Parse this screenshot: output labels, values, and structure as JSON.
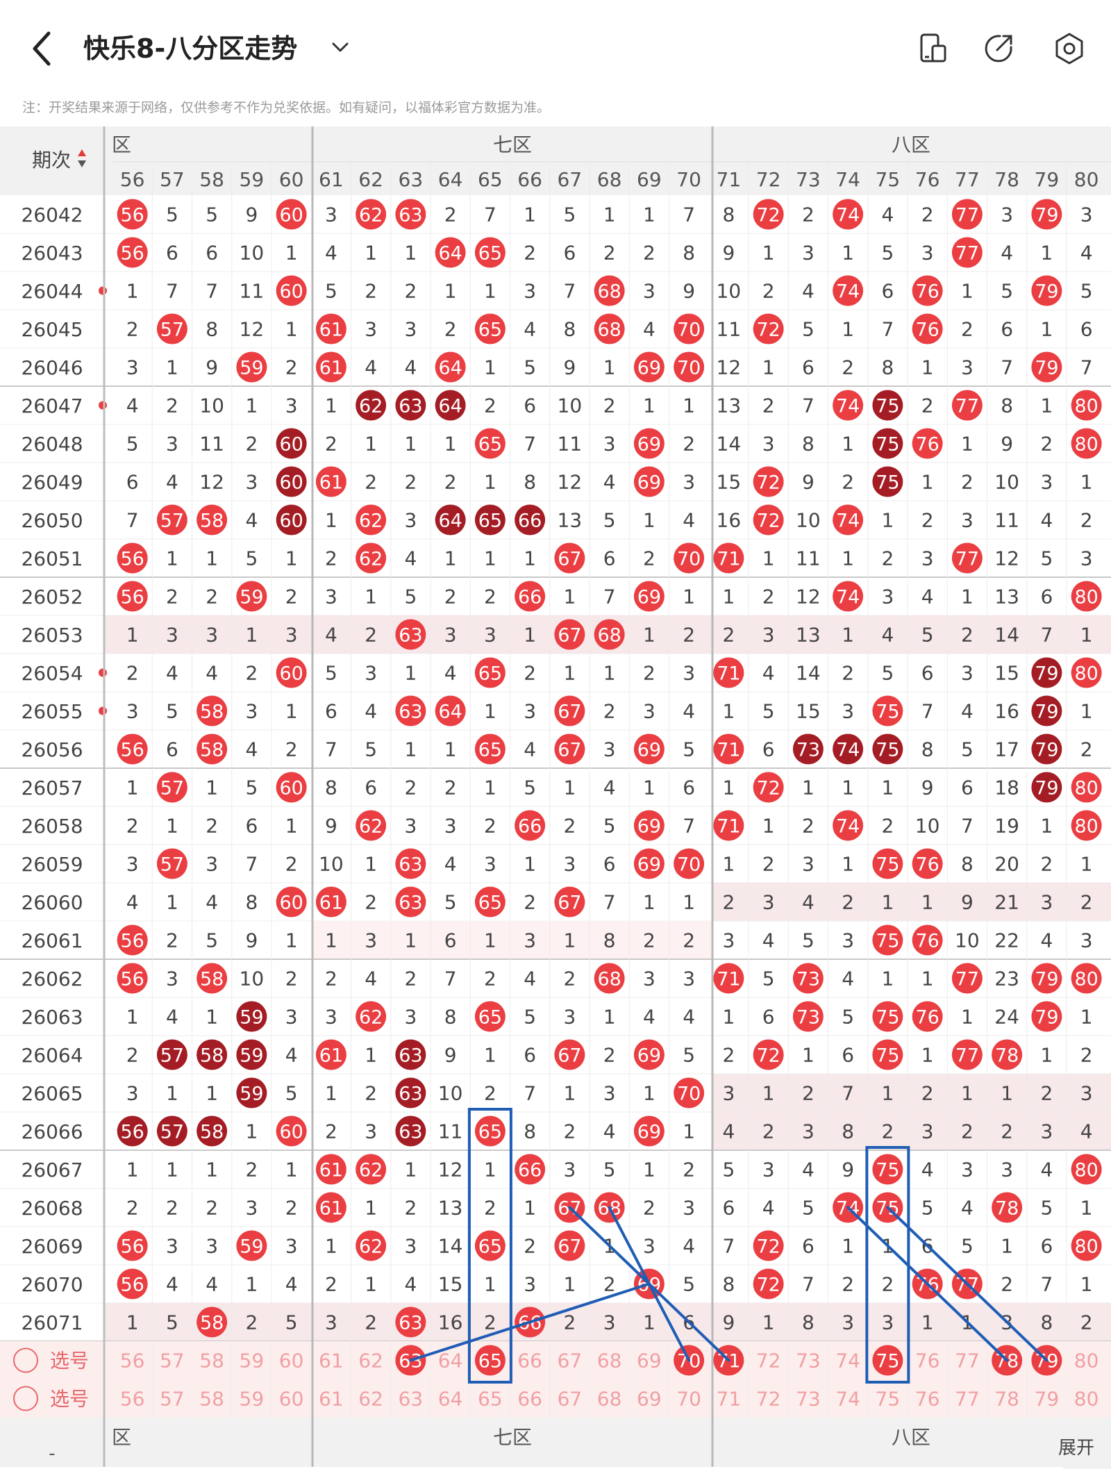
{
  "header": {
    "title": "快乐8-八分区走势",
    "icons": [
      "back-icon",
      "chevron-down-icon",
      "phone-layout-icon",
      "share-icon",
      "settings-icon"
    ]
  },
  "notice": "注：开奖结果来源于网络，仅供参考不作为兑奖依据。如有疑问，以福体彩官方数据为准。",
  "table": {
    "period_label": "期次",
    "zones": [
      {
        "label": "六区",
        "shown": "区"
      },
      {
        "label": "七区",
        "shown": "七区"
      },
      {
        "label": "八区",
        "shown": "八区"
      }
    ],
    "columns": [
      56,
      57,
      58,
      59,
      60,
      61,
      62,
      63,
      64,
      65,
      66,
      67,
      68,
      69,
      70,
      71,
      72,
      73,
      74,
      75,
      76,
      77,
      78,
      79,
      80
    ],
    "rows": [
      {
        "p": "26042",
        "v": [
          "56",
          5,
          5,
          9,
          "60",
          3,
          "62",
          "63",
          2,
          7,
          1,
          5,
          1,
          1,
          7,
          8,
          "72",
          2,
          "74",
          4,
          2,
          "77",
          3,
          "79",
          3
        ],
        "hl": [],
        "ld": false
      },
      {
        "p": "26043",
        "v": [
          "56",
          6,
          6,
          10,
          1,
          4,
          1,
          1,
          "64",
          "65",
          2,
          6,
          2,
          2,
          8,
          9,
          1,
          3,
          1,
          5,
          3,
          "77",
          4,
          1,
          4
        ],
        "hl": [],
        "ld": false
      },
      {
        "p": "26044",
        "v": [
          1,
          7,
          7,
          11,
          "60",
          5,
          2,
          2,
          1,
          1,
          3,
          7,
          "68",
          3,
          9,
          10,
          2,
          4,
          "74",
          6,
          "76",
          1,
          5,
          "79",
          5
        ],
        "hl": [],
        "ld": true
      },
      {
        "p": "26045",
        "v": [
          2,
          "57",
          8,
          12,
          1,
          "61",
          3,
          3,
          2,
          "65",
          4,
          8,
          "68",
          4,
          "70",
          11,
          "72",
          5,
          1,
          7,
          "76",
          2,
          6,
          1,
          6
        ],
        "hl": [],
        "ld": false
      },
      {
        "p": "26046",
        "v": [
          3,
          1,
          9,
          "59",
          2,
          "61",
          4,
          4,
          "64",
          1,
          5,
          9,
          1,
          "69",
          "70",
          12,
          1,
          6,
          2,
          8,
          1,
          3,
          7,
          "79",
          7
        ],
        "hl": [],
        "ld": false
      },
      {
        "p": "26047",
        "v": [
          4,
          2,
          10,
          1,
          3,
          1,
          "62",
          "63",
          "64",
          2,
          6,
          10,
          2,
          1,
          1,
          13,
          2,
          7,
          "74",
          "75",
          2,
          "77",
          8,
          1,
          "80"
        ],
        "hl": [
          "62",
          "63",
          "64",
          "75"
        ],
        "ld": true
      },
      {
        "p": "26048",
        "v": [
          5,
          3,
          11,
          2,
          "60",
          2,
          1,
          1,
          1,
          "65",
          7,
          11,
          3,
          "69",
          2,
          14,
          3,
          8,
          1,
          "75",
          "76",
          1,
          9,
          2,
          "80"
        ],
        "hl": [
          "60",
          "75"
        ],
        "ld": false
      },
      {
        "p": "26049",
        "v": [
          6,
          4,
          12,
          3,
          "60",
          "61",
          2,
          2,
          2,
          1,
          8,
          12,
          4,
          "69",
          3,
          15,
          "72",
          9,
          2,
          "75",
          1,
          2,
          10,
          3,
          1
        ],
        "hl": [
          "60",
          "75"
        ],
        "ld": false
      },
      {
        "p": "26050",
        "v": [
          7,
          "57",
          "58",
          4,
          "60",
          1,
          "62",
          3,
          "64",
          "65",
          "66",
          13,
          5,
          1,
          4,
          16,
          "72",
          10,
          "74",
          1,
          2,
          3,
          11,
          4,
          2
        ],
        "hl": [
          "60",
          "64",
          "65",
          "66"
        ],
        "ld": false
      },
      {
        "p": "26051",
        "v": [
          "56",
          1,
          1,
          5,
          1,
          2,
          "62",
          4,
          1,
          1,
          1,
          "67",
          6,
          2,
          "70",
          "71",
          1,
          11,
          1,
          2,
          3,
          "77",
          12,
          5,
          3
        ],
        "hl": [],
        "ld": false
      },
      {
        "p": "26052",
        "v": [
          "56",
          2,
          2,
          "59",
          2,
          3,
          1,
          5,
          2,
          2,
          "66",
          1,
          7,
          "69",
          1,
          1,
          2,
          12,
          "74",
          3,
          4,
          1,
          13,
          6,
          "80"
        ],
        "hl": [],
        "ld": false
      },
      {
        "p": "26053",
        "v": [
          1,
          3,
          3,
          1,
          3,
          4,
          2,
          "63",
          3,
          3,
          1,
          "67",
          "68",
          1,
          2,
          2,
          3,
          13,
          1,
          4,
          5,
          2,
          14,
          7,
          1
        ],
        "hl": [],
        "ld": false
      },
      {
        "p": "26054",
        "v": [
          2,
          4,
          4,
          2,
          "60",
          5,
          3,
          1,
          4,
          "65",
          2,
          1,
          1,
          2,
          3,
          "71",
          4,
          14,
          2,
          5,
          6,
          3,
          15,
          "79",
          "80"
        ],
        "hl": [
          "79"
        ],
        "ld": true
      },
      {
        "p": "26055",
        "v": [
          3,
          5,
          "58",
          3,
          1,
          6,
          4,
          "63",
          "64",
          1,
          3,
          "67",
          2,
          3,
          4,
          1,
          5,
          15,
          3,
          "75",
          7,
          4,
          16,
          "79",
          1
        ],
        "hl": [
          "79"
        ],
        "ld": true
      },
      {
        "p": "26056",
        "v": [
          "56",
          6,
          "58",
          4,
          2,
          7,
          5,
          1,
          1,
          "65",
          4,
          "67",
          3,
          "69",
          5,
          "71",
          6,
          "73",
          "74",
          "75",
          8,
          5,
          17,
          "79",
          2
        ],
        "hl": [
          "73",
          "74",
          "75",
          "79"
        ],
        "ld": false
      },
      {
        "p": "26057",
        "v": [
          1,
          "57",
          1,
          5,
          "60",
          8,
          6,
          2,
          2,
          1,
          5,
          1,
          4,
          1,
          6,
          1,
          "72",
          1,
          1,
          1,
          9,
          6,
          18,
          "79",
          "80"
        ],
        "hl": [
          "79"
        ],
        "ld": false
      },
      {
        "p": "26058",
        "v": [
          2,
          1,
          2,
          6,
          1,
          9,
          "62",
          3,
          3,
          2,
          "66",
          2,
          5,
          "69",
          7,
          "71",
          1,
          2,
          "74",
          2,
          10,
          7,
          19,
          1,
          "80"
        ],
        "hl": [],
        "ld": false
      },
      {
        "p": "26059",
        "v": [
          3,
          "57",
          3,
          7,
          2,
          10,
          1,
          "63",
          4,
          3,
          1,
          3,
          6,
          "69",
          "70",
          1,
          2,
          3,
          1,
          "75",
          "76",
          8,
          20,
          2,
          1
        ],
        "hl": [],
        "ld": false
      },
      {
        "p": "26060",
        "v": [
          4,
          1,
          4,
          8,
          "60",
          "61",
          2,
          "63",
          5,
          "65",
          2,
          "67",
          7,
          1,
          1,
          2,
          3,
          4,
          2,
          1,
          1,
          9,
          21,
          3,
          2
        ],
        "hl": [],
        "ld": false
      },
      {
        "p": "26061",
        "v": [
          "56",
          2,
          5,
          9,
          1,
          1,
          3,
          1,
          6,
          1,
          3,
          1,
          8,
          2,
          2,
          3,
          4,
          5,
          3,
          "75",
          "76",
          10,
          22,
          4,
          3
        ],
        "hl": [],
        "ld": false
      },
      {
        "p": "26062",
        "v": [
          "56",
          3,
          "58",
          10,
          2,
          2,
          4,
          2,
          7,
          2,
          4,
          2,
          "68",
          3,
          3,
          "71",
          5,
          "73",
          4,
          1,
          1,
          "77",
          23,
          "79",
          "80"
        ],
        "hl": [],
        "ld": false
      },
      {
        "p": "26063",
        "v": [
          1,
          4,
          1,
          "59",
          3,
          3,
          "62",
          3,
          8,
          "65",
          5,
          3,
          1,
          4,
          4,
          1,
          6,
          "73",
          5,
          "75",
          "76",
          1,
          24,
          "79",
          1
        ],
        "hl": [
          "59"
        ],
        "ld": false
      },
      {
        "p": "26064",
        "v": [
          2,
          "57",
          "58",
          "59",
          4,
          "61",
          1,
          "63",
          9,
          1,
          6,
          "67",
          2,
          "69",
          5,
          2,
          "72",
          1,
          6,
          "75",
          1,
          "77",
          "78",
          1,
          2
        ],
        "hl": [
          "57",
          "58",
          "59",
          "63"
        ],
        "ld": false
      },
      {
        "p": "26065",
        "v": [
          3,
          1,
          1,
          "59",
          5,
          1,
          2,
          "63",
          10,
          2,
          7,
          1,
          3,
          1,
          "70",
          3,
          1,
          2,
          7,
          1,
          2,
          1,
          1,
          2,
          3
        ],
        "hl": [
          "59",
          "63"
        ],
        "ld": false
      },
      {
        "p": "26066",
        "v": [
          "56",
          "57",
          "58",
          1,
          "60",
          2,
          3,
          "63",
          11,
          "65",
          8,
          2,
          4,
          "69",
          1,
          4,
          2,
          3,
          8,
          2,
          3,
          2,
          2,
          3,
          4
        ],
        "hl": [
          "56",
          "57",
          "58",
          "63"
        ],
        "ld": false
      },
      {
        "p": "26067",
        "v": [
          1,
          1,
          1,
          2,
          1,
          "61",
          "62",
          1,
          12,
          1,
          "66",
          3,
          5,
          1,
          2,
          5,
          3,
          4,
          9,
          "75",
          4,
          3,
          3,
          4,
          "80"
        ],
        "hl": [],
        "ld": false
      },
      {
        "p": "26068",
        "v": [
          2,
          2,
          2,
          3,
          2,
          "61",
          1,
          2,
          13,
          2,
          1,
          "67",
          "68",
          2,
          3,
          6,
          4,
          5,
          "74",
          "75",
          5,
          4,
          "78",
          5,
          1
        ],
        "hl": [],
        "ld": false
      },
      {
        "p": "26069",
        "v": [
          "56",
          3,
          3,
          "59",
          3,
          1,
          "62",
          3,
          14,
          "65",
          2,
          "67",
          1,
          3,
          4,
          7,
          "72",
          6,
          1,
          1,
          6,
          5,
          1,
          6,
          "80"
        ],
        "hl": [],
        "ld": false
      },
      {
        "p": "26070",
        "v": [
          "56",
          4,
          4,
          1,
          4,
          2,
          1,
          4,
          15,
          1,
          3,
          1,
          2,
          "69",
          5,
          8,
          "72",
          7,
          2,
          2,
          "76",
          "77",
          2,
          7,
          1
        ],
        "hl": [],
        "ld": false
      },
      {
        "p": "26071",
        "v": [
          1,
          5,
          "58",
          2,
          5,
          3,
          2,
          "63",
          16,
          2,
          "66",
          2,
          3,
          1,
          6,
          9,
          1,
          8,
          3,
          3,
          1,
          1,
          3,
          8,
          2
        ],
        "hl": [],
        "ld": false
      }
    ],
    "select_label": "选号",
    "select_rows": [
      {
        "picked": [
          "63",
          "65",
          "70",
          "71",
          "75",
          "78",
          "79"
        ]
      },
      {
        "picked": []
      }
    ],
    "footer_zone_shown": [
      "区",
      "七区",
      "八区"
    ],
    "footer_period": "-"
  },
  "expand_label": "展开",
  "colors": {
    "ball_red": "#ea3e42",
    "ball_dark": "#a51d24",
    "line_blue": "#1f5db5",
    "zone_divider": "#b8b8b8",
    "row_tint": "#f7e8ea",
    "select_bg": "#fdeeee",
    "header_bg": "#f1f1f1"
  }
}
